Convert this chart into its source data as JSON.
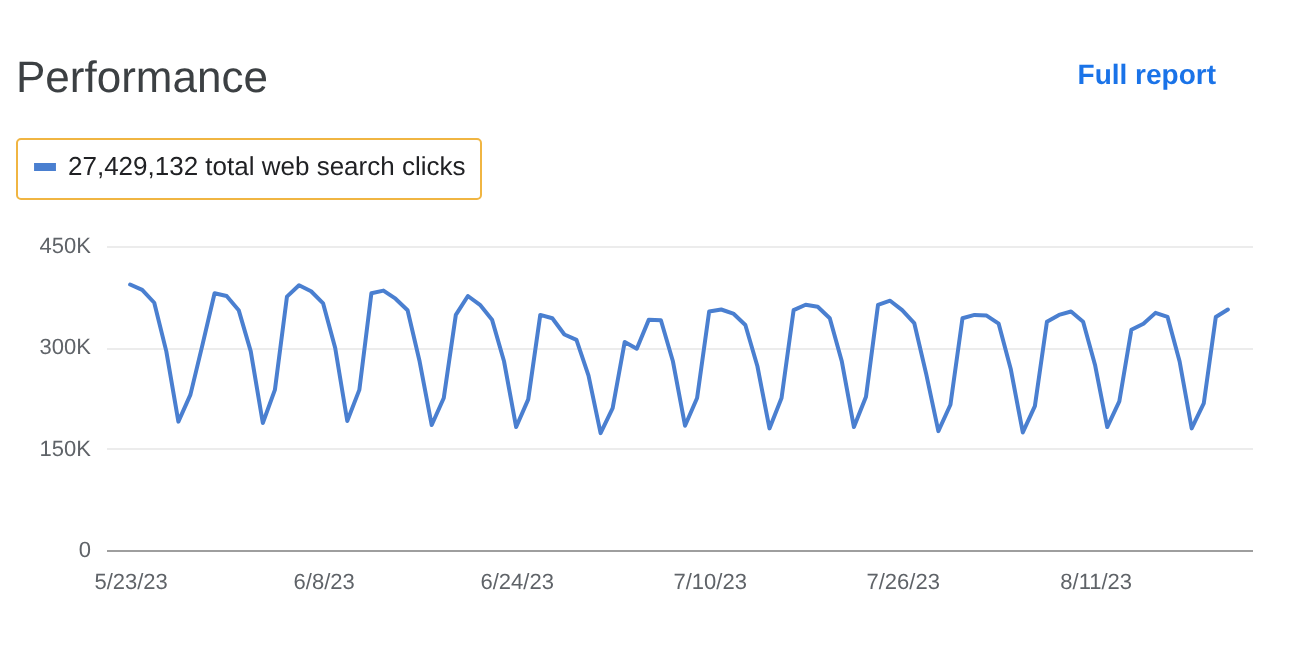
{
  "chart_data": {
    "type": "line",
    "title": "Performance",
    "annotations": [
      "Full report"
    ],
    "x": [
      "2023-05-23",
      "2023-05-24",
      "2023-05-25",
      "2023-05-26",
      "2023-05-27",
      "2023-05-28",
      "2023-05-29",
      "2023-05-30",
      "2023-05-31",
      "2023-06-01",
      "2023-06-02",
      "2023-06-03",
      "2023-06-04",
      "2023-06-05",
      "2023-06-06",
      "2023-06-07",
      "2023-06-08",
      "2023-06-09",
      "2023-06-10",
      "2023-06-11",
      "2023-06-12",
      "2023-06-13",
      "2023-06-14",
      "2023-06-15",
      "2023-06-16",
      "2023-06-17",
      "2023-06-18",
      "2023-06-19",
      "2023-06-20",
      "2023-06-21",
      "2023-06-22",
      "2023-06-23",
      "2023-06-24",
      "2023-06-25",
      "2023-06-26",
      "2023-06-27",
      "2023-06-28",
      "2023-06-29",
      "2023-06-30",
      "2023-07-01",
      "2023-07-02",
      "2023-07-03",
      "2023-07-04",
      "2023-07-05",
      "2023-07-06",
      "2023-07-07",
      "2023-07-08",
      "2023-07-09",
      "2023-07-10",
      "2023-07-11",
      "2023-07-12",
      "2023-07-13",
      "2023-07-14",
      "2023-07-15",
      "2023-07-16",
      "2023-07-17",
      "2023-07-18",
      "2023-07-19",
      "2023-07-20",
      "2023-07-21",
      "2023-07-22",
      "2023-07-23",
      "2023-07-24",
      "2023-07-25",
      "2023-07-26",
      "2023-07-27",
      "2023-07-28",
      "2023-07-29",
      "2023-07-30",
      "2023-07-31",
      "2023-08-01",
      "2023-08-02",
      "2023-08-03",
      "2023-08-04",
      "2023-08-05",
      "2023-08-06",
      "2023-08-07",
      "2023-08-08",
      "2023-08-09",
      "2023-08-10",
      "2023-08-11",
      "2023-08-12",
      "2023-08-13",
      "2023-08-14",
      "2023-08-15",
      "2023-08-16",
      "2023-08-17",
      "2023-08-18",
      "2023-08-19",
      "2023-08-20",
      "2023-08-21",
      "2023-08-22"
    ],
    "series": [
      {
        "name": "27,429,132 total web search clicks",
        "color": "#4a7fd0",
        "values": [
          393000,
          385000,
          366000,
          294000,
          190000,
          230000,
          304000,
          380000,
          376000,
          355000,
          294000,
          188000,
          237000,
          375000,
          392000,
          383000,
          365000,
          299000,
          191000,
          237000,
          380000,
          384000,
          372000,
          355000,
          279000,
          185000,
          225000,
          348000,
          376000,
          363000,
          341000,
          279000,
          182000,
          223000,
          348000,
          343000,
          319000,
          311000,
          258000,
          173000,
          210000,
          308000,
          298000,
          341000,
          340000,
          279000,
          184000,
          225000,
          353000,
          356000,
          350000,
          333000,
          272000,
          180000,
          225000,
          355000,
          363000,
          360000,
          343000,
          279000,
          182000,
          227000,
          363000,
          369000,
          355000,
          336000,
          260000,
          176000,
          215000,
          343000,
          348000,
          347000,
          335000,
          268000,
          174000,
          213000,
          338000,
          348000,
          353000,
          338000,
          273000,
          182000,
          220000,
          326000,
          335000,
          351000,
          345000,
          279000,
          180000,
          217000,
          345000,
          356000
        ]
      }
    ],
    "xlim": [
      "2023-05-21",
      "2023-08-24"
    ],
    "xticks": [
      {
        "value": "2023-05-23",
        "label": "5/23/23"
      },
      {
        "value": "2023-06-08",
        "label": "6/8/23"
      },
      {
        "value": "2023-06-24",
        "label": "6/24/23"
      },
      {
        "value": "2023-07-10",
        "label": "7/10/23"
      },
      {
        "value": "2023-07-26",
        "label": "7/26/23"
      },
      {
        "value": "2023-08-11",
        "label": "8/11/23"
      }
    ],
    "ylim": [
      0,
      450000
    ],
    "yticks": [
      0,
      {
        "value": 150000,
        "label": "150K"
      },
      {
        "value": 300000,
        "label": "300K"
      },
      {
        "value": 450000,
        "label": "450K"
      }
    ],
    "grid": "y",
    "legend": "top left",
    "line_style": "solid",
    "marker": "none"
  }
}
